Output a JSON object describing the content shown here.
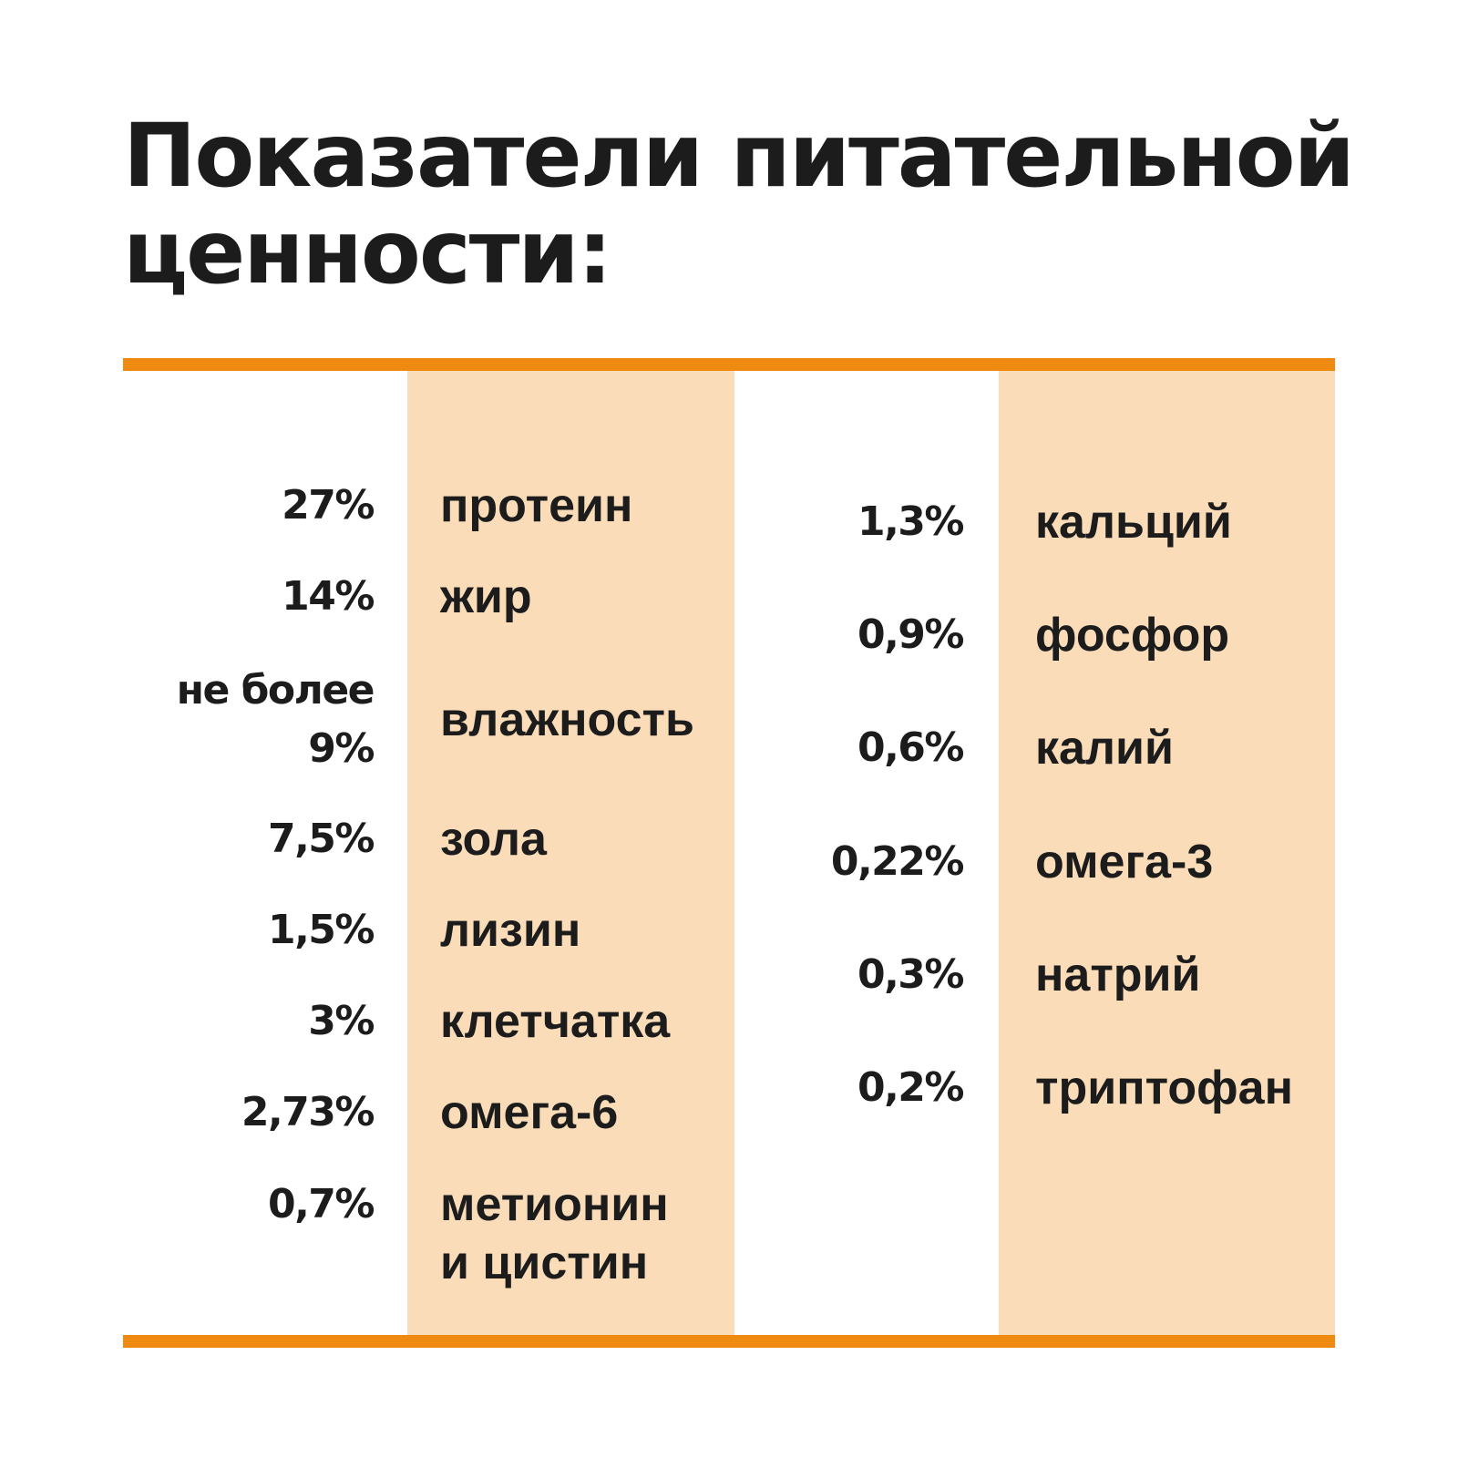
{
  "title": {
    "line1": "Показатели питательной",
    "line2": "ценности:"
  },
  "colors": {
    "accent": "#ee8a10",
    "band": "#fadcb8",
    "text": "#1c1c1c",
    "background": "#ffffff"
  },
  "left_column": [
    {
      "value": "27%",
      "label": "протеин"
    },
    {
      "value": "14%",
      "label": "жир"
    },
    {
      "value": "не более\n9%",
      "label": "влажность"
    },
    {
      "value": "7,5%",
      "label": "зола"
    },
    {
      "value": "1,5%",
      "label": "лизин"
    },
    {
      "value": "3%",
      "label": "клетчатка"
    },
    {
      "value": "2,73%",
      "label": "омега-6"
    },
    {
      "value": "0,7%",
      "label": "метионин\nи цистин"
    }
  ],
  "right_column": [
    {
      "value": "1,3%",
      "label": "кальций"
    },
    {
      "value": "0,9%",
      "label": "фосфор"
    },
    {
      "value": "0,6%",
      "label": "калий"
    },
    {
      "value": "0,22%",
      "label": "омега-3"
    },
    {
      "value": "0,3%",
      "label": "натрий"
    },
    {
      "value": "0,2%",
      "label": "триптофан"
    }
  ]
}
